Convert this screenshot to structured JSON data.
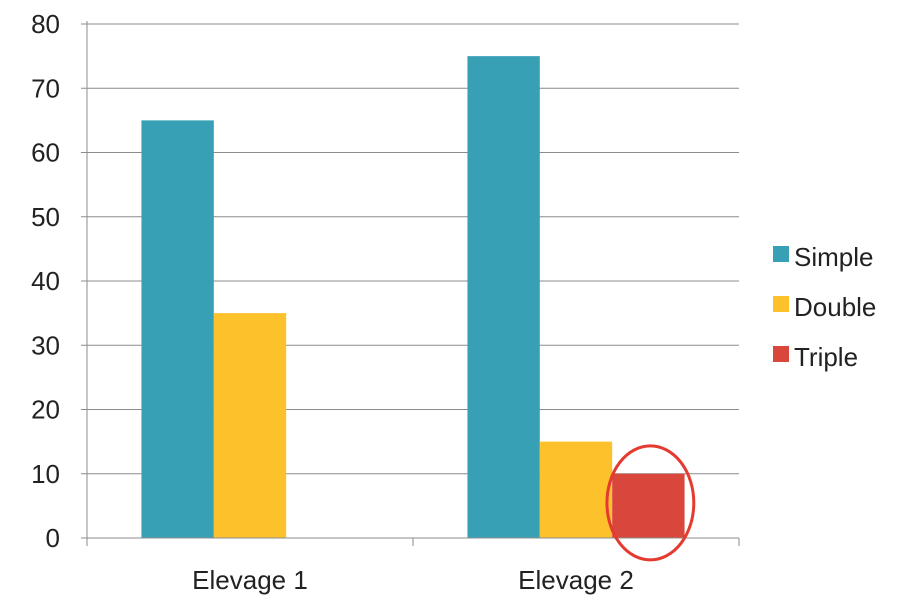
{
  "chart_data": {
    "type": "bar",
    "categories": [
      "Elevage 1",
      "Elevage 2"
    ],
    "series": [
      {
        "name": "Simple",
        "values": [
          65,
          75
        ],
        "color": "#37a0b5"
      },
      {
        "name": "Double",
        "values": [
          35,
          15
        ],
        "color": "#fcc12b"
      },
      {
        "name": "Triple",
        "values": [
          0,
          10
        ],
        "color": "#d9463c"
      }
    ],
    "yticks": [
      "0",
      "10",
      "20",
      "30",
      "40",
      "50",
      "60",
      "70",
      "80"
    ],
    "ylim": [
      0,
      80
    ],
    "grid": true,
    "legend_position": "right",
    "annotation": {
      "shape": "circle",
      "target_series": "Triple",
      "target_category": "Elevage 2",
      "color": "#e53a2f"
    }
  }
}
